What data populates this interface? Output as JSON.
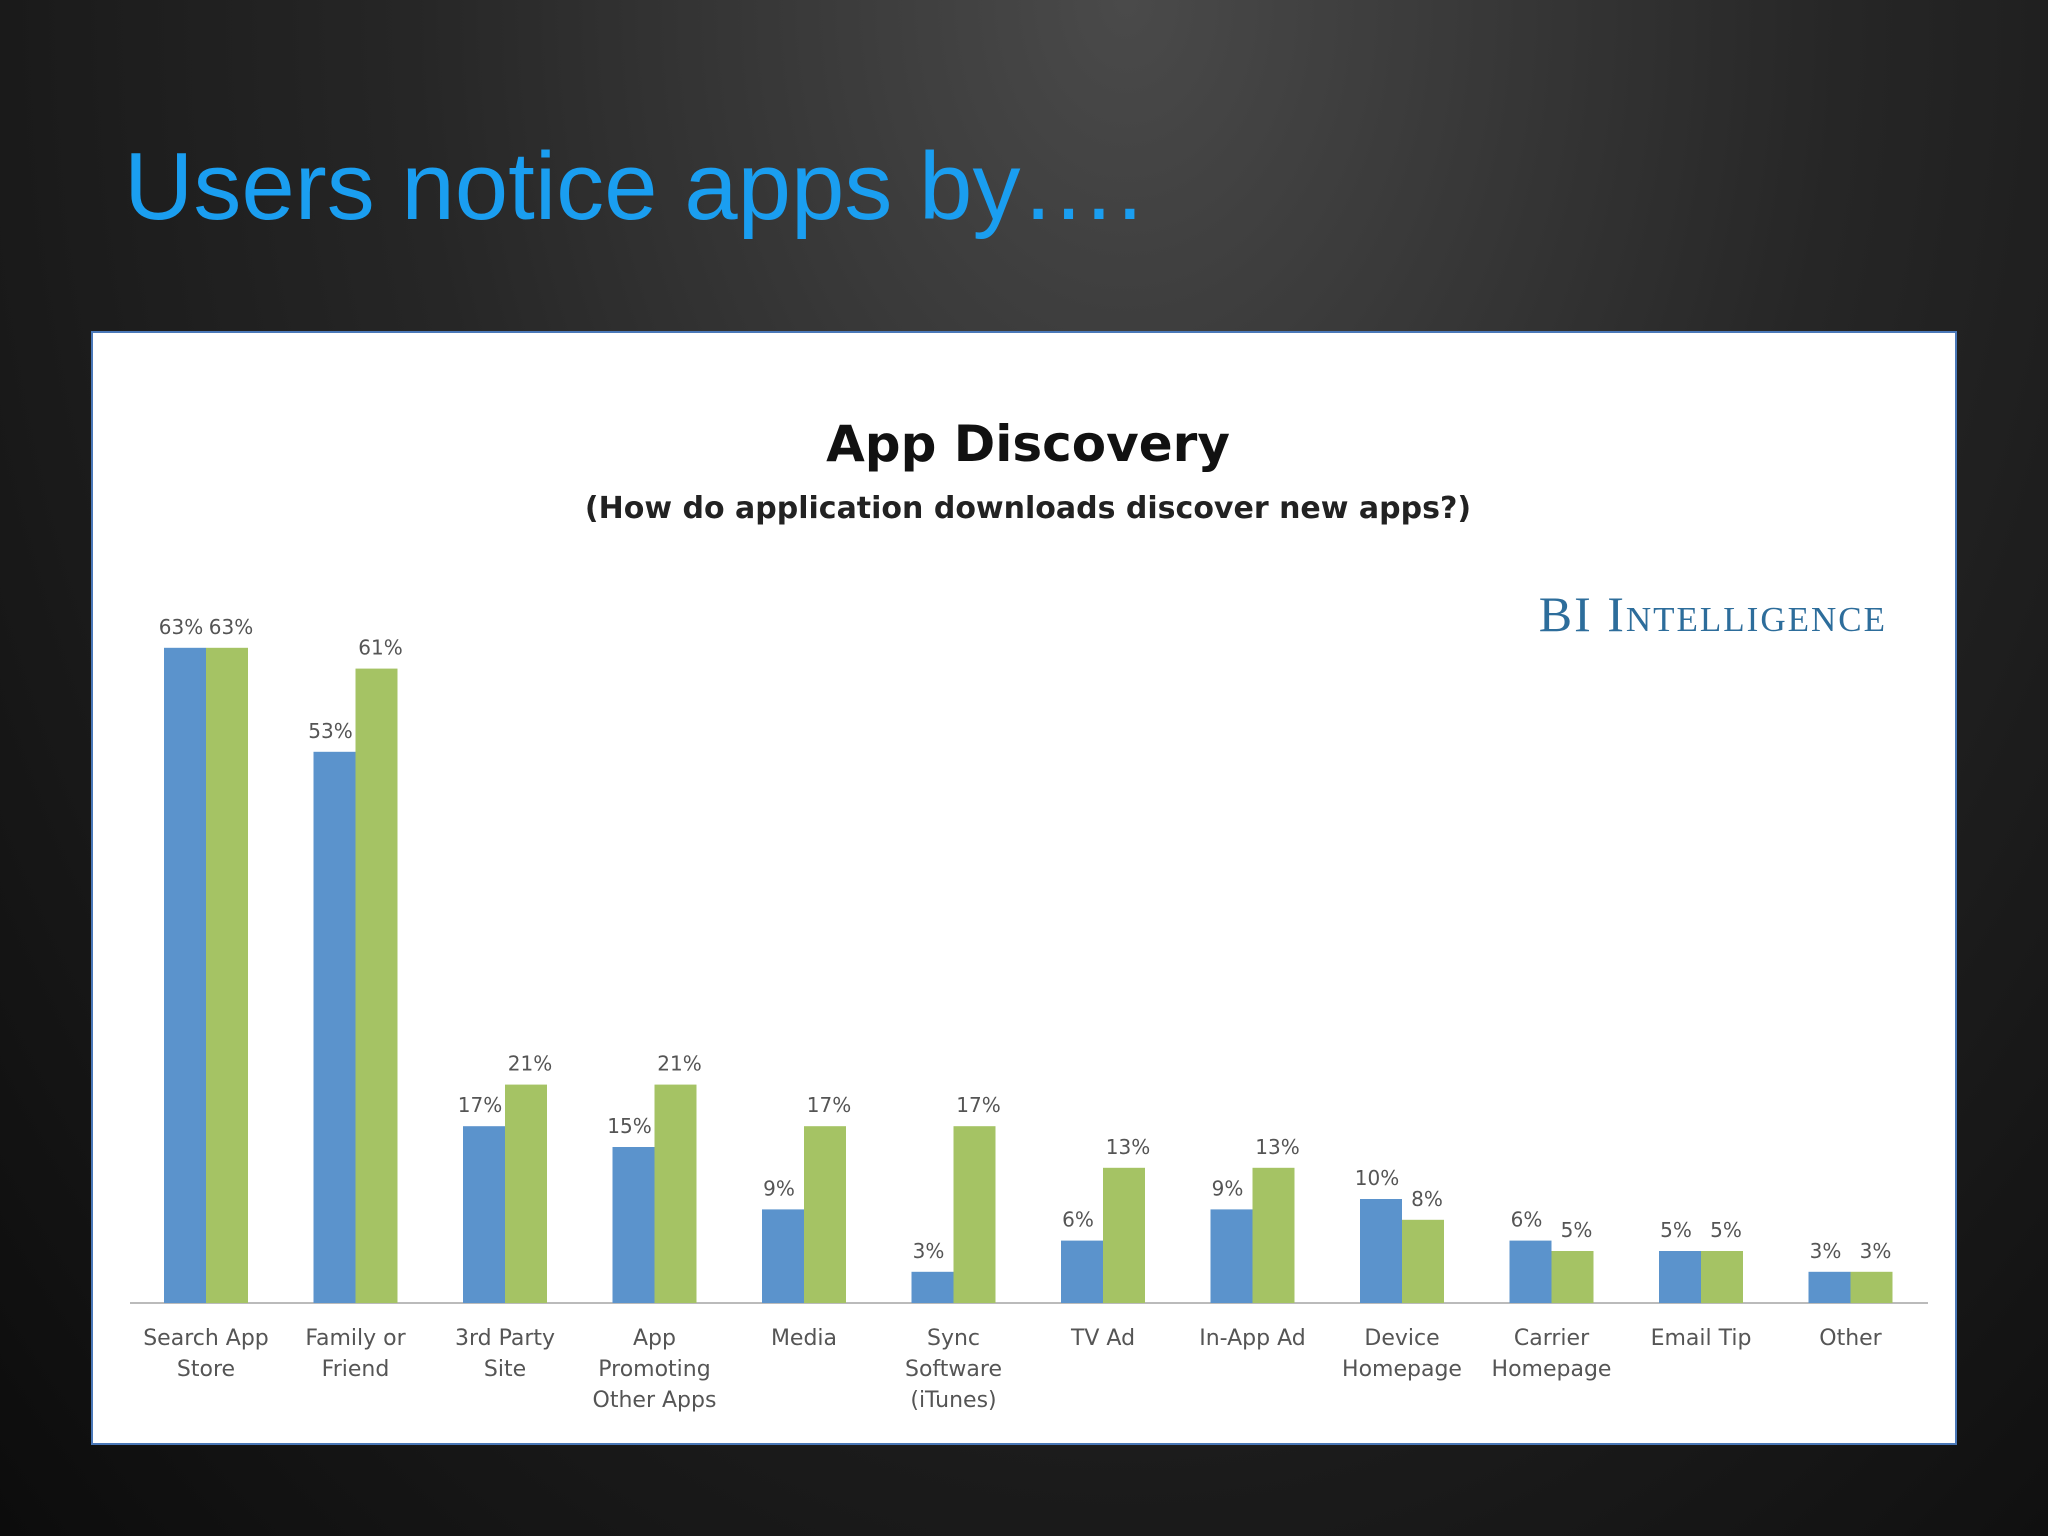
{
  "slide_title": "Users notice apps by….",
  "chart_data": {
    "type": "bar",
    "title": "App Discovery",
    "subtitle": "(How do application downloads discover new apps?)",
    "annotation": "BI Intelligence",
    "categories": [
      "Search App Store",
      "Family or Friend",
      "3rd Party Site",
      "App Promoting Other Apps",
      "Media",
      "Sync Software (iTunes)",
      "TV Ad",
      "In-App Ad",
      "Device Homepage",
      "Carrier Homepage",
      "Email Tip",
      "Other"
    ],
    "series": [
      {
        "color": "#5b93cc",
        "values": [
          63,
          53,
          17,
          15,
          9,
          3,
          6,
          9,
          10,
          6,
          5,
          3
        ],
        "value_labels": [
          "63%",
          "53%",
          "17%",
          "15%",
          "9%",
          "3%",
          "6%",
          "9%",
          "10%",
          "6%",
          "5%",
          "3%"
        ]
      },
      {
        "color": "#a5c364",
        "values": [
          63,
          61,
          21,
          21,
          17,
          17,
          13,
          13,
          8,
          5,
          5,
          3
        ],
        "value_labels": [
          "63%",
          "61%",
          "21%",
          "21%",
          "17%",
          "17%",
          "13%",
          "13%",
          "8%",
          "5%",
          "5%",
          "3%"
        ]
      }
    ]
  }
}
